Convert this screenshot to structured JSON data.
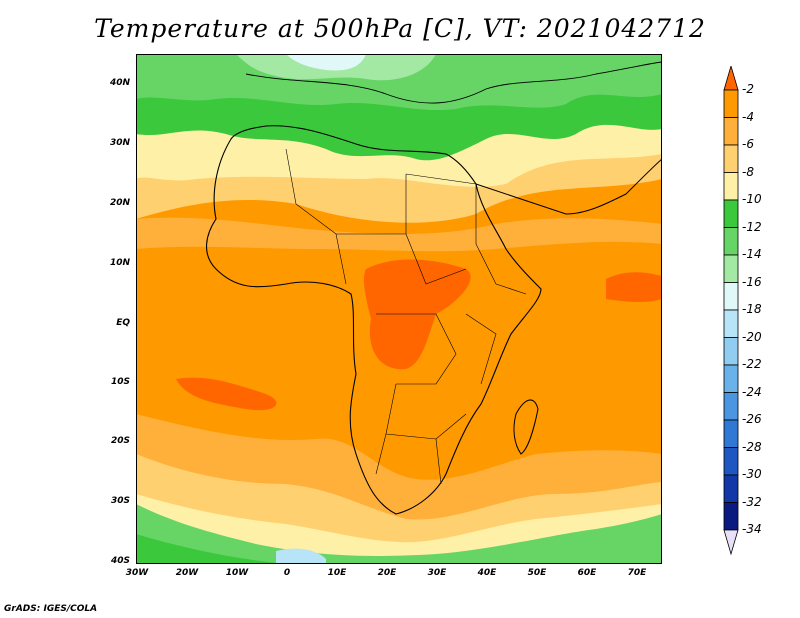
{
  "title": "Temperature at 500hPa [C], VT: 2021042712",
  "footer": "GrADS: IGES/COLA",
  "map": {
    "latitude_labels": [
      "40N",
      "30N",
      "20N",
      "10N",
      "EQ",
      "10S",
      "20S",
      "30S",
      "40S"
    ],
    "longitude_labels": [
      "30W",
      "20W",
      "10W",
      "0",
      "10E",
      "20E",
      "30E",
      "40E",
      "50E",
      "60E",
      "70E"
    ],
    "extent": {
      "lon_min": -30,
      "lon_max": 75,
      "lat_min": -40,
      "lat_max": 45
    }
  },
  "colorbar": {
    "labels": [
      "-2",
      "-4",
      "-6",
      "-8",
      "-10",
      "-12",
      "-14",
      "-16",
      "-18",
      "-20",
      "-22",
      "-24",
      "-26",
      "-28",
      "-30",
      "-32",
      "-34"
    ],
    "colors": [
      "#ff6600",
      "#ff9900",
      "#ffb03a",
      "#ffd070",
      "#fff0a8",
      "#3cc83c",
      "#66d566",
      "#a3e8a3",
      "#e0f8f8",
      "#b8e4f8",
      "#90cdf0",
      "#6ab3ea",
      "#4a96e0",
      "#2f78d4",
      "#1e57c2",
      "#1238a8",
      "#0a1a80",
      "#e8e0f8"
    ]
  }
}
